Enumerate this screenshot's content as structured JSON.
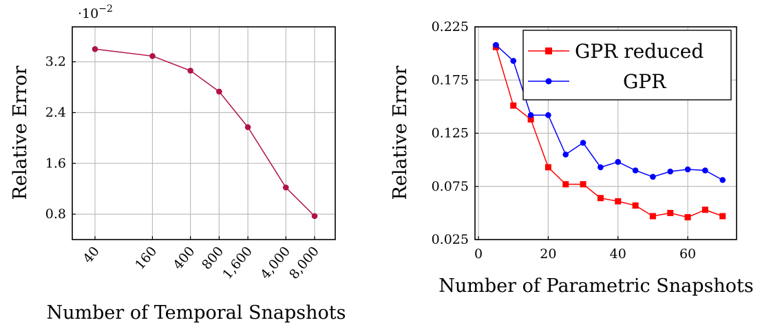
{
  "chart_data": [
    {
      "type": "line",
      "xlabel": "Number of Temporal Snapshots",
      "ylabel": "Relative Error",
      "scale_label": "·10",
      "scale_exponent": "−2",
      "x_scale": "log",
      "ylim": [
        0.4,
        3.75
      ],
      "grid": true,
      "x": [
        40,
        160,
        400,
        800,
        1600,
        4000,
        8000
      ],
      "x_tick_labels": [
        "40",
        "160",
        "400",
        "800",
        "1,600",
        "4,000",
        "8,000"
      ],
      "y_ticks": [
        0.8,
        1.6,
        2.4,
        3.2
      ],
      "y_tick_labels": [
        "0.8",
        "1.6",
        "2.4",
        "3.2"
      ],
      "series": [
        {
          "name": "",
          "color": "#b0124b",
          "marker": "circle",
          "values": [
            3.4,
            3.29,
            3.06,
            2.73,
            2.17,
            1.22,
            0.77
          ]
        }
      ]
    },
    {
      "type": "line",
      "xlabel": "Number of Parametric Snapshots",
      "ylabel": "Relative Error",
      "xlim": [
        -1,
        74
      ],
      "ylim": [
        0.025,
        0.225
      ],
      "grid": true,
      "legend_position": "top-right",
      "x_ticks": [
        0,
        20,
        40,
        60
      ],
      "x_tick_labels": [
        "0",
        "20",
        "40",
        "60"
      ],
      "y_ticks": [
        0.025,
        0.075,
        0.125,
        0.175,
        0.225
      ],
      "y_tick_labels": [
        "0.025",
        "0.075",
        "0.125",
        "0.175",
        "0.225"
      ],
      "x": [
        5,
        10,
        15,
        20,
        25,
        30,
        35,
        40,
        45,
        50,
        55,
        60,
        65,
        70
      ],
      "series": [
        {
          "name": "GPR reduced",
          "color": "#ff0000",
          "marker": "square",
          "values": [
            0.206,
            0.151,
            0.138,
            0.093,
            0.077,
            0.077,
            0.064,
            0.061,
            0.057,
            0.047,
            0.05,
            0.046,
            0.053,
            0.047
          ]
        },
        {
          "name": "GPR",
          "color": "#0000ff",
          "marker": "circle",
          "values": [
            0.208,
            0.193,
            0.142,
            0.142,
            0.105,
            0.116,
            0.093,
            0.098,
            0.09,
            0.084,
            0.089,
            0.091,
            0.09,
            0.081
          ]
        }
      ]
    }
  ]
}
